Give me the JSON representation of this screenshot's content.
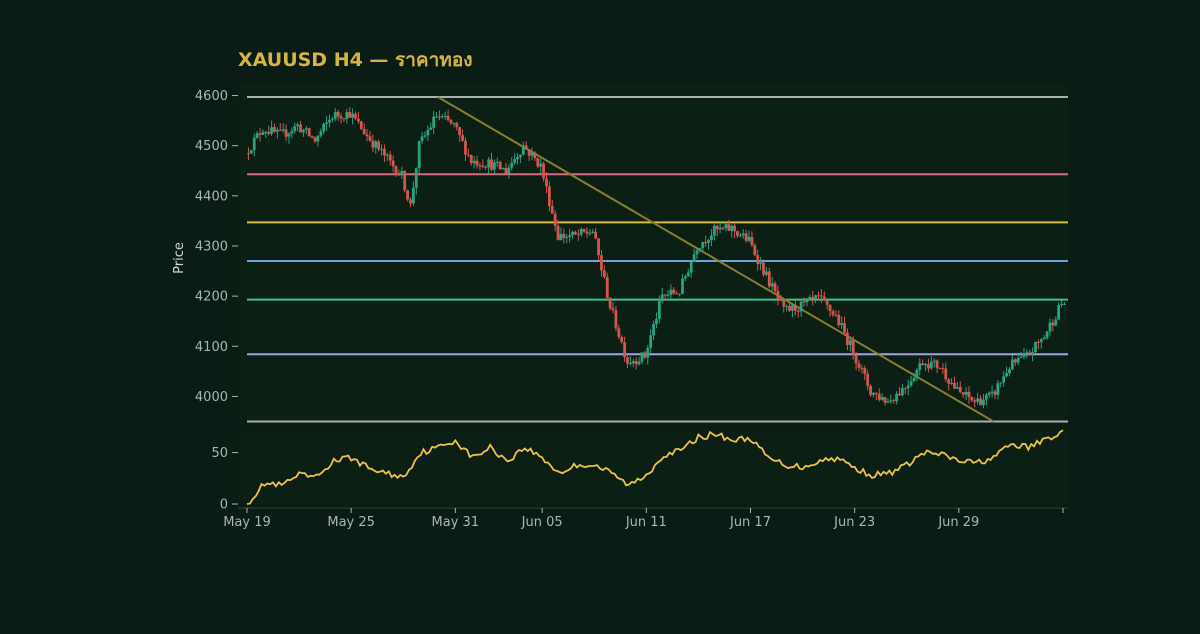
{
  "chart_data": {
    "type": "candlestick",
    "title": "XAUUSD H4 — ราคาทอง",
    "ylabel": "Price",
    "x_tick_labels": [
      "May 19",
      "May 25",
      "May 31",
      "Jun 05",
      "Jun 11",
      "Jun 17",
      "Jun 23",
      "Jun 29"
    ],
    "x_range": [
      "2025-05-19",
      "2025-07-05"
    ],
    "price_panel": {
      "ylim": [
        3945,
        4625
      ],
      "yticks": [
        4000,
        4100,
        4200,
        4300,
        4400,
        4500,
        4600
      ],
      "horizontal_levels": [
        {
          "price": 4597,
          "color": "#a9b2ad"
        },
        {
          "price": 4443,
          "color": "#d9697e"
        },
        {
          "price": 4347,
          "color": "#d7bf3e"
        },
        {
          "price": 4270,
          "color": "#6fa4dc"
        },
        {
          "price": 4193,
          "color": "#3fc48e"
        },
        {
          "price": 4084,
          "color": "#a7a1e2"
        },
        {
          "price": 3950,
          "color": "#a9b2ad"
        }
      ],
      "trendline": {
        "start": [
          "2025-05-30",
          4597
        ],
        "end": [
          "2025-07-01",
          3950
        ],
        "color": "#8a7e2c"
      },
      "anchors": [
        [
          "2025-05-19",
          4485
        ],
        [
          "2025-05-20",
          4535
        ],
        [
          "2025-05-21",
          4520
        ],
        [
          "2025-05-22",
          4540
        ],
        [
          "2025-05-23",
          4510
        ],
        [
          "2025-05-24",
          4560
        ],
        [
          "2025-05-25",
          4565
        ],
        [
          "2025-05-26",
          4520
        ],
        [
          "2025-05-27",
          4480
        ],
        [
          "2025-05-28",
          4440
        ],
        [
          "2025-05-28T12:00",
          4380
        ],
        [
          "2025-05-29",
          4500
        ],
        [
          "2025-05-30",
          4560
        ],
        [
          "2025-05-31",
          4540
        ],
        [
          "2025-06-01",
          4470
        ],
        [
          "2025-06-02",
          4465
        ],
        [
          "2025-06-03",
          4450
        ],
        [
          "2025-06-04",
          4500
        ],
        [
          "2025-06-05",
          4460
        ],
        [
          "2025-06-06",
          4320
        ],
        [
          "2025-06-07",
          4320
        ],
        [
          "2025-06-08",
          4330
        ],
        [
          "2025-06-09",
          4180
        ],
        [
          "2025-06-10",
          4070
        ],
        [
          "2025-06-11",
          4080
        ],
        [
          "2025-06-12",
          4200
        ],
        [
          "2025-06-13",
          4210
        ],
        [
          "2025-06-14",
          4300
        ],
        [
          "2025-06-15",
          4330
        ],
        [
          "2025-06-16",
          4335
        ],
        [
          "2025-06-17",
          4310
        ],
        [
          "2025-06-18",
          4240
        ],
        [
          "2025-06-19",
          4170
        ],
        [
          "2025-06-20",
          4180
        ],
        [
          "2025-06-21",
          4195
        ],
        [
          "2025-06-22",
          4160
        ],
        [
          "2025-06-23",
          4090
        ],
        [
          "2025-06-24",
          4010
        ],
        [
          "2025-06-25",
          3990
        ],
        [
          "2025-06-26",
          4020
        ],
        [
          "2025-06-27",
          4070
        ],
        [
          "2025-06-28",
          4060
        ],
        [
          "2025-06-29",
          4010
        ],
        [
          "2025-06-30",
          3990
        ],
        [
          "2025-07-01",
          4000
        ],
        [
          "2025-07-02",
          4060
        ],
        [
          "2025-07-03",
          4080
        ],
        [
          "2025-07-04",
          4120
        ],
        [
          "2025-07-05",
          4185
        ]
      ]
    },
    "indicator_panel": {
      "ylim": [
        0,
        72
      ],
      "yticks": [
        0,
        50
      ],
      "color": "#f0c14a",
      "anchors": [
        [
          "2025-05-19",
          0
        ],
        [
          "2025-05-20",
          20
        ],
        [
          "2025-05-21",
          18
        ],
        [
          "2025-05-22",
          28
        ],
        [
          "2025-05-23",
          26
        ],
        [
          "2025-05-24",
          42
        ],
        [
          "2025-05-25",
          45
        ],
        [
          "2025-05-26",
          35
        ],
        [
          "2025-05-27",
          30
        ],
        [
          "2025-05-28",
          26
        ],
        [
          "2025-05-29",
          50
        ],
        [
          "2025-05-30",
          55
        ],
        [
          "2025-05-31",
          62
        ],
        [
          "2025-06-01",
          45
        ],
        [
          "2025-06-02",
          55
        ],
        [
          "2025-06-03",
          42
        ],
        [
          "2025-06-04",
          55
        ],
        [
          "2025-06-05",
          45
        ],
        [
          "2025-06-06",
          30
        ],
        [
          "2025-06-07",
          38
        ],
        [
          "2025-06-08",
          38
        ],
        [
          "2025-06-09",
          30
        ],
        [
          "2025-06-10",
          18
        ],
        [
          "2025-06-11",
          28
        ],
        [
          "2025-06-12",
          48
        ],
        [
          "2025-06-13",
          52
        ],
        [
          "2025-06-14",
          65
        ],
        [
          "2025-06-15",
          68
        ],
        [
          "2025-06-16",
          62
        ],
        [
          "2025-06-17",
          64
        ],
        [
          "2025-06-18",
          45
        ],
        [
          "2025-06-19",
          38
        ],
        [
          "2025-06-20",
          36
        ],
        [
          "2025-06-21",
          42
        ],
        [
          "2025-06-22",
          45
        ],
        [
          "2025-06-23",
          35
        ],
        [
          "2025-06-24",
          28
        ],
        [
          "2025-06-25",
          30
        ],
        [
          "2025-06-26",
          38
        ],
        [
          "2025-06-27",
          50
        ],
        [
          "2025-06-28",
          48
        ],
        [
          "2025-06-29",
          42
        ],
        [
          "2025-06-30",
          40
        ],
        [
          "2025-07-01",
          45
        ],
        [
          "2025-07-02",
          58
        ],
        [
          "2025-07-03",
          55
        ],
        [
          "2025-07-04",
          63
        ],
        [
          "2025-07-05",
          70
        ]
      ]
    },
    "colors": {
      "up": "#2aa37f",
      "down": "#d4574f",
      "background": "#0a1c13",
      "plot_bg": "#0b1f15"
    }
  }
}
